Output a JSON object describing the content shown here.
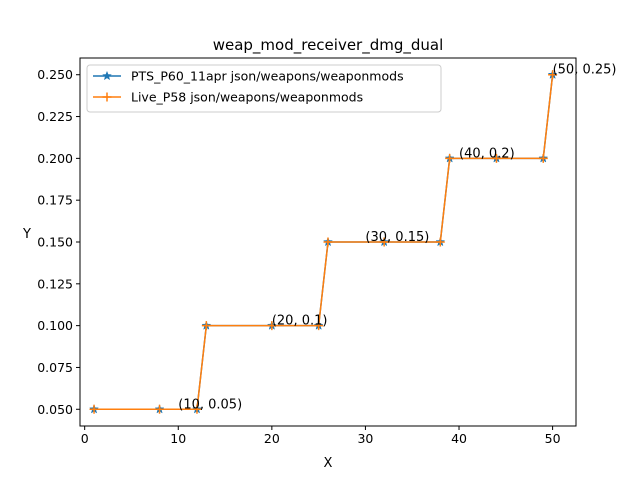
{
  "chart_data": {
    "type": "line",
    "title": "weap_mod_receiver_dmg_dual",
    "xlabel": "X",
    "ylabel": "Y",
    "xlim": [
      -0.5,
      52.5
    ],
    "ylim": [
      0.04,
      0.26
    ],
    "xticks": [
      0,
      10,
      20,
      30,
      40,
      50
    ],
    "xtick_labels": [
      "0",
      "10",
      "20",
      "30",
      "40",
      "50"
    ],
    "yticks": [
      0.05,
      0.075,
      0.1,
      0.125,
      0.15,
      0.175,
      0.2,
      0.225,
      0.25
    ],
    "ytick_labels": [
      "0.050",
      "0.075",
      "0.100",
      "0.125",
      "0.150",
      "0.175",
      "0.200",
      "0.225",
      "0.250"
    ],
    "grid": false,
    "legend_position": "upper-left",
    "series": [
      {
        "name": "PTS_P60_11apr json/weapons/weaponmods",
        "color": "#1f77b4",
        "marker": "star",
        "x": [
          1,
          8,
          12,
          13,
          20,
          25,
          26,
          32,
          38,
          39,
          44,
          49,
          50
        ],
        "y": [
          0.05,
          0.05,
          0.05,
          0.1,
          0.1,
          0.1,
          0.15,
          0.15,
          0.15,
          0.2,
          0.2,
          0.2,
          0.25
        ]
      },
      {
        "name": "Live_P58 json/weapons/weaponmods",
        "color": "#ff7f0e",
        "marker": "plus",
        "x": [
          1,
          8,
          12,
          13,
          20,
          25,
          26,
          32,
          38,
          39,
          44,
          49,
          50
        ],
        "y": [
          0.05,
          0.05,
          0.05,
          0.1,
          0.1,
          0.1,
          0.15,
          0.15,
          0.15,
          0.2,
          0.2,
          0.2,
          0.25
        ]
      }
    ],
    "annotations": [
      {
        "text": "(10, 0.05)",
        "x": 10,
        "y": 0.05
      },
      {
        "text": "(20, 0.1)",
        "x": 20,
        "y": 0.1
      },
      {
        "text": "(30, 0.15)",
        "x": 30,
        "y": 0.15
      },
      {
        "text": "(40, 0.2)",
        "x": 40,
        "y": 0.2
      },
      {
        "text": "(50, 0.25)",
        "x": 50,
        "y": 0.25
      }
    ]
  }
}
